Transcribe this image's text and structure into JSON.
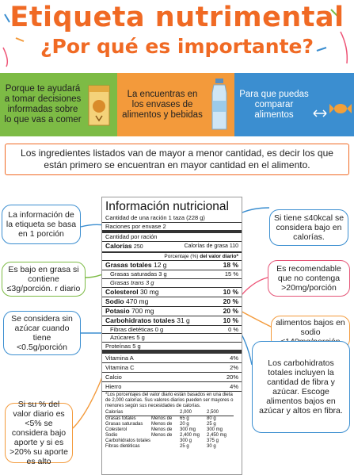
{
  "title": "Etiqueta nutrimental",
  "subtitle": "¿Por qué es importante?",
  "bands": [
    {
      "text": "Porque te ayudará a tomar decisiones informadas sobre lo que vas a comer",
      "color": "#7dbb45"
    },
    {
      "text": "La encuentras en los envases de alimentos y bebidas",
      "color": "#f39a3b"
    },
    {
      "text": "Para que puedas comparar alimentos",
      "color": "#3b8ed0"
    }
  ],
  "intro": "Los ingredientes listados van de mayor a menor cantidad, es decir los que están primero se encuentran en mayor cantidad en el alimento.",
  "callouts": {
    "left1": "La información de la etiqueta se basa en 1 porción",
    "left2": "Es bajo en grasa si contiene ≤3g/porción. r diario",
    "left3": "Se considera sin azúcar cuando tiene <0.5g/porción",
    "left4": "Si su % del valor diario es <5% se considera bajo aporte y si es >20% su aporte es alto",
    "right1": "Si tiene ≤40kcal se considera bajo en calorías.",
    "right2": "Es recomendable que no contenga >20mg/porción",
    "right3": "alimentos bajos en sodio ≤140mg/porción",
    "right4": "Los carbohidratos totales incluyen la cantidad de fibra y azúcar. Escoge alimentos bajos en azúcar y altos en fibra."
  },
  "label": {
    "title": "Información nutricional",
    "serving": "Cantidad de una ración  1 taza (228 g)",
    "servings": "Raciones por envase 2",
    "amount": "Cantidad por ración",
    "calories_label": "Calorías",
    "calories_value": "250",
    "fat_cal_label": "Calorías de grasa",
    "fat_cal_value": "110",
    "dv_header_pre": "Porcentaje (%)",
    "dv_header": "del valor diario*",
    "rows": [
      {
        "label": "Grasas totales",
        "amount": "12 g",
        "pct": "18 %",
        "style": "b"
      },
      {
        "label": "Grasas saturadas",
        "amount": "3 g",
        "pct": "15 %",
        "style": "ind"
      },
      {
        "label": "Grasas trans",
        "amount": "3 g",
        "pct": "",
        "style": "ind"
      },
      {
        "label": "Colesterol",
        "amount": "30 mg",
        "pct": "10 %",
        "style": "b"
      },
      {
        "label": "Sodio",
        "amount": "470 mg",
        "pct": "20 %",
        "style": "b"
      },
      {
        "label": "Potasio",
        "amount": "700 mg",
        "pct": "20 %",
        "style": "b"
      },
      {
        "label": "Carbohidratos totales",
        "amount": "31 g",
        "pct": "10 %",
        "style": "b"
      },
      {
        "label": "Fibras dietéticas",
        "amount": "0 g",
        "pct": "0 %",
        "style": "ind"
      },
      {
        "label": "Azúcares",
        "amount": "5 g",
        "pct": "",
        "style": "ind"
      },
      {
        "label": "Proteínas",
        "amount": "5 g",
        "pct": "",
        "style": "plain"
      }
    ],
    "vitamins": [
      {
        "label": "Vitamina A",
        "pct": "4%"
      },
      {
        "label": "Vitamina C",
        "pct": "2%"
      },
      {
        "label": "Calcio",
        "pct": "20%"
      },
      {
        "label": "Hierro",
        "pct": "4%"
      }
    ],
    "footnote": "*Los porcentajes del valor diario están basados en una dieta de 2,000 calorías. Sus valores diarios pueden ser mayores o menores según sus necesidades de calorías.",
    "table_header": [
      "Calorías",
      "",
      "2,000",
      "2,500"
    ],
    "table_rows": [
      [
        "Grasas totales",
        "Menos de",
        "65 g",
        "80 g"
      ],
      [
        "Grasas saturadas",
        "Menos de",
        "20 g",
        "25 g"
      ],
      [
        "Colesterol",
        "Menos de",
        "300 mg",
        "300 mg"
      ],
      [
        "Sodio",
        "Menos de",
        "2,400 mg",
        "2,450 mg"
      ],
      [
        "Carbohidratos totales",
        "",
        "300 g",
        "375 g"
      ],
      [
        "Fibras dietéticas",
        "",
        "25 g",
        "30 g"
      ]
    ]
  },
  "colors": {
    "title": "#f06a24",
    "green": "#7dbb45",
    "orange": "#f39a3b",
    "blue": "#3b8ed0"
  }
}
